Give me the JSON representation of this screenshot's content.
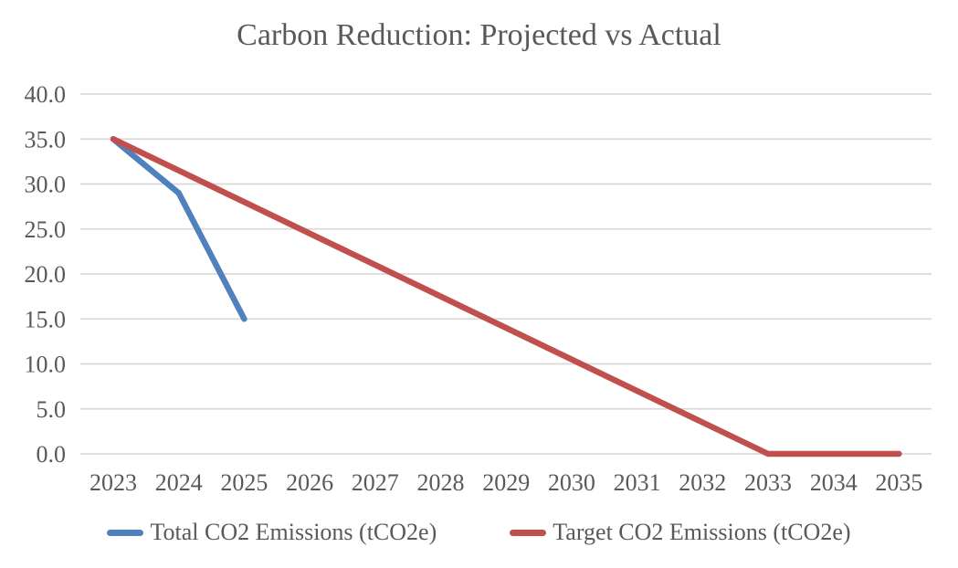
{
  "chart_data": {
    "type": "line",
    "title": "Carbon Reduction: Projected vs Actual",
    "xlabel": "",
    "ylabel": "",
    "categories": [
      "2023",
      "2024",
      "2025",
      "2026",
      "2027",
      "2028",
      "2029",
      "2030",
      "2031",
      "2032",
      "2033",
      "2034",
      "2035"
    ],
    "series": [
      {
        "name": "Total CO2 Emissions (tCO2e)",
        "color": "#4F81BD",
        "values": [
          35.0,
          29.0,
          15.0,
          null,
          null,
          null,
          null,
          null,
          null,
          null,
          null,
          null,
          null
        ]
      },
      {
        "name": "Target CO2 Emissions (tCO2e)",
        "color": "#C0504D",
        "values": [
          35.0,
          31.5,
          28.0,
          24.5,
          21.0,
          17.5,
          14.0,
          10.5,
          7.0,
          3.5,
          0.0,
          0.0,
          0.0
        ]
      }
    ],
    "ylim": [
      0,
      40
    ],
    "yticks": [
      0,
      5,
      10,
      15,
      20,
      25,
      30,
      35,
      40
    ],
    "ytick_labels": [
      "0.0",
      "5.0",
      "10.0",
      "15.0",
      "20.0",
      "25.0",
      "30.0",
      "35.0",
      "40.0"
    ],
    "grid": "horizontal",
    "legend_position": "bottom"
  },
  "style": {
    "background": "#FFFFFF",
    "title_color": "#595959",
    "axis_text_color": "#595959",
    "gridline_color": "#D9D9D9",
    "line_width": 6.5
  }
}
